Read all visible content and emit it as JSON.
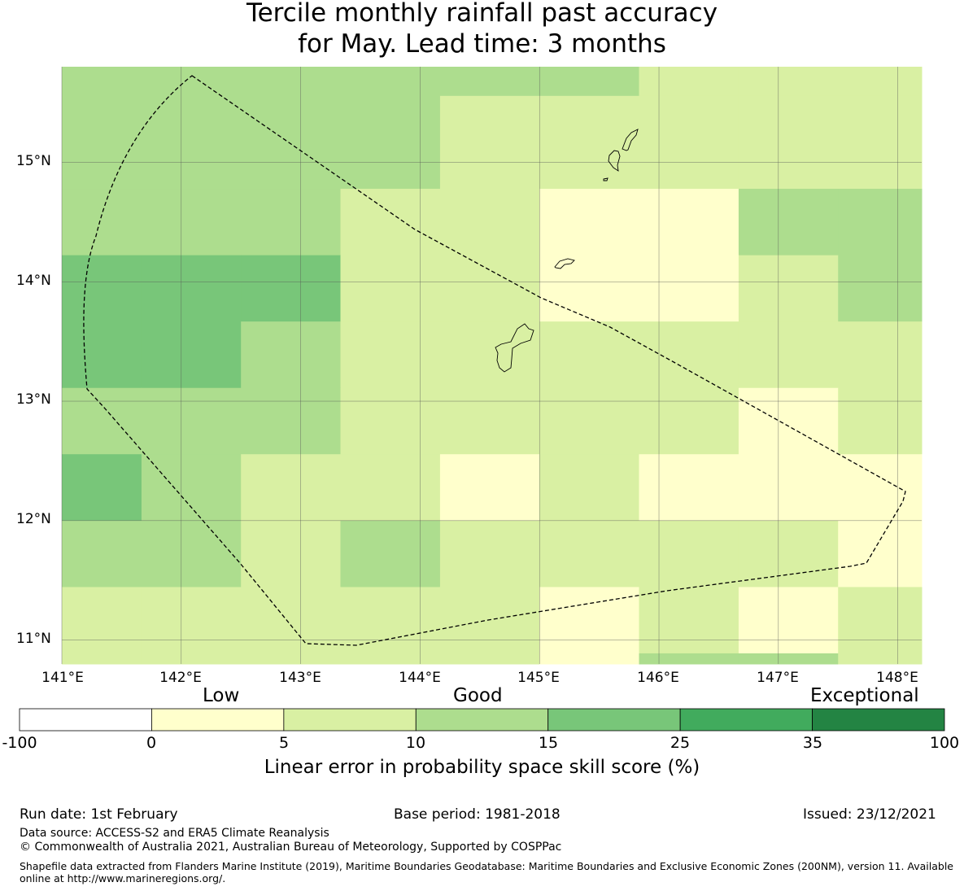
{
  "title": {
    "line1": "Tercile monthly rainfall past accuracy",
    "line2": "for May. Lead time: 3 months"
  },
  "map": {
    "lon_labels": [
      "141°E",
      "142°E",
      "143°E",
      "144°E",
      "145°E",
      "146°E",
      "147°E",
      "148°E"
    ],
    "lat_labels": [
      "15°N",
      "14°N",
      "13°N",
      "12°N",
      "11°N"
    ],
    "lon_range": [
      141.0,
      148.2
    ],
    "lat_range": [
      10.8,
      15.8
    ],
    "lon_lines": [
      141,
      142,
      143,
      144,
      145,
      146,
      147,
      148
    ],
    "lat_lines": [
      15,
      14,
      13,
      12,
      11
    ],
    "grid_lon_edges": [
      141.0,
      141.667,
      142.5,
      143.333,
      144.167,
      145.0,
      145.833,
      146.667,
      147.5,
      148.2
    ],
    "grid_lat_edges": [
      15.8,
      15.556,
      14.778,
      14.222,
      13.667,
      13.111,
      12.556,
      12.0,
      11.444,
      10.889,
      10.8
    ],
    "cell_classes": [
      [
        3,
        3,
        3,
        3,
        3,
        3,
        2,
        2,
        2
      ],
      [
        3,
        3,
        3,
        3,
        2,
        2,
        2,
        2,
        2
      ],
      [
        3,
        3,
        3,
        2,
        2,
        1,
        1,
        3,
        3
      ],
      [
        4,
        4,
        4,
        2,
        2,
        1,
        1,
        2,
        3
      ],
      [
        4,
        4,
        3,
        2,
        2,
        2,
        2,
        2,
        2
      ],
      [
        3,
        3,
        3,
        2,
        2,
        2,
        2,
        1,
        2
      ],
      [
        4,
        3,
        2,
        2,
        1,
        2,
        1,
        1,
        1
      ],
      [
        3,
        3,
        2,
        3,
        2,
        2,
        2,
        2,
        1
      ],
      [
        2,
        2,
        2,
        2,
        2,
        1,
        2,
        1,
        2
      ],
      [
        2,
        2,
        2,
        2,
        2,
        1,
        3,
        3,
        2
      ]
    ],
    "colors": [
      "#ffffff",
      "#ffffcc",
      "#d9f0a3",
      "#addd8e",
      "#78c679",
      "#41ab5d",
      "#238443"
    ]
  },
  "colorbar": {
    "categories": [
      "Low",
      "Good",
      "Exceptional"
    ],
    "ticks": [
      "-100",
      "0",
      "5",
      "10",
      "15",
      "25",
      "35",
      "100"
    ],
    "label": "Linear error in probability space skill score (%)"
  },
  "footer": {
    "run_date": "Run date: 1st February",
    "base_period": "Base period: 1981-2018",
    "issued": "Issued: 23/12/2021",
    "data_source": "Data source: ACCESS-S2 and ERA5 Climate Reanalysis",
    "copyright": "© Commonwealth of Australia 2021, Australian Bureau of Meteorology, Supported by COSPPac",
    "shapefile": "Shapefile data extracted from Flanders Marine Institute (2019), Maritime Boundaries Geodatabase: Maritime Boundaries and Exclusive Economic Zones (200NM), version 11. Available online at http://www.marineregions.org/."
  }
}
